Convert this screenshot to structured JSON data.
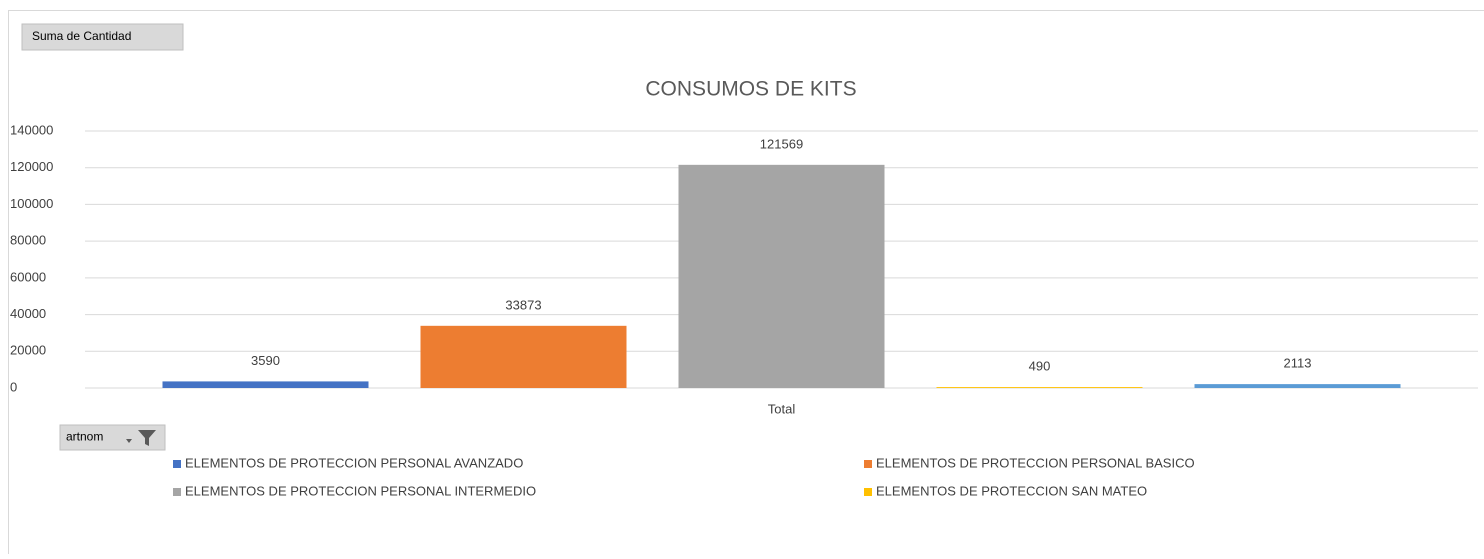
{
  "chart_data": {
    "type": "bar",
    "title": "CONSUMOS DE KITS",
    "value_field": "Suma de Cantidad",
    "axis_field": "artnom",
    "categories": [
      "Total"
    ],
    "series": [
      {
        "name": "ELEMENTOS DE PROTECCION PERSONAL AVANZADO",
        "color": "#4472c4",
        "values": [
          3590
        ]
      },
      {
        "name": "ELEMENTOS DE PROTECCION PERSONAL BASICO",
        "color": "#ed7d31",
        "values": [
          33873
        ]
      },
      {
        "name": "ELEMENTOS DE PROTECCION PERSONAL INTERMEDIO",
        "color": "#a5a5a5",
        "values": [
          121569
        ]
      },
      {
        "name": "ELEMENTOS DE PROTECCION SAN MATEO",
        "color": "#ffc000",
        "values": [
          490
        ]
      },
      {
        "color": "#5b9bd5",
        "values": [
          2113
        ]
      }
    ],
    "ylim": [
      0,
      140000
    ],
    "yticks": [
      0,
      20000,
      40000,
      60000,
      80000,
      100000,
      120000,
      140000
    ],
    "grid": true,
    "data_labels": true,
    "legend": "bottom"
  }
}
